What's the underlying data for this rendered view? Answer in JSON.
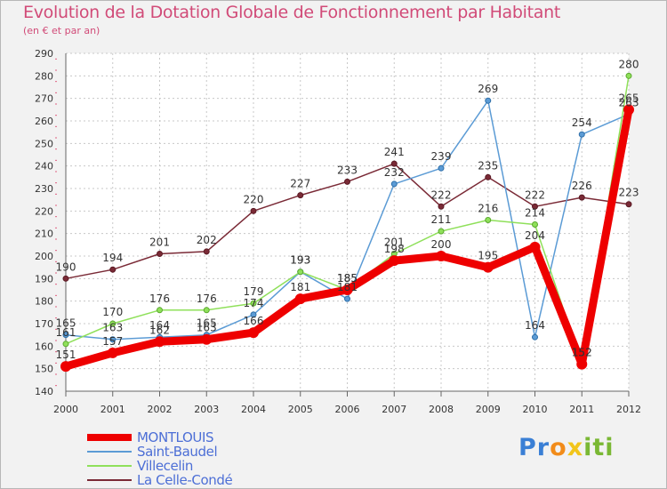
{
  "chart_data": {
    "type": "line",
    "title": "Evolution de la Dotation Globale de Fonctionnement par Habitant",
    "subtitle": "(en € et par an)",
    "xlabel": "",
    "ylabel": "",
    "ylim": [
      140,
      290
    ],
    "yticks": [
      140,
      150,
      160,
      170,
      180,
      190,
      200,
      210,
      220,
      230,
      240,
      250,
      260,
      270,
      280,
      290
    ],
    "x": [
      "2000",
      "2001",
      "2002",
      "2003",
      "2004",
      "2005",
      "2006",
      "2007",
      "2008",
      "2009",
      "2010",
      "2011",
      "2012"
    ],
    "grid": true,
    "legend_position": "bottom-left",
    "series": [
      {
        "name": "La Celle-Condé",
        "color": "#7a2a36",
        "values": [
          190,
          194,
          201,
          202,
          220,
          227,
          233,
          241,
          222,
          235,
          222,
          226,
          223
        ]
      },
      {
        "name": "Saint-Baudel",
        "color": "#5b9bd5",
        "values": [
          165,
          163,
          164,
          165,
          174,
          193,
          181,
          232,
          239,
          269,
          164,
          254,
          263
        ]
      },
      {
        "name": "Villecelin",
        "color": "#8fe05a",
        "values": [
          161,
          170,
          176,
          176,
          179,
          193,
          185,
          201,
          211,
          216,
          214,
          152,
          280
        ]
      },
      {
        "name": "MONTLOUIS",
        "color": "#ee0000",
        "values": [
          151,
          157,
          162,
          163,
          166,
          181,
          185,
          198,
          200,
          195,
          204,
          152,
          265
        ]
      }
    ],
    "legend": [
      "MONTLOUIS",
      "Saint-Baudel",
      "Villecelin",
      "La Celle-Condé"
    ],
    "brand": {
      "letters": [
        "P",
        "r",
        "o",
        "x",
        "i",
        "t",
        "i"
      ],
      "colors": [
        "#3a7fd5",
        "#3a7fd5",
        "#f28c1a",
        "#f2c51a",
        "#7ab834",
        "#7ab834",
        "#7ab834"
      ]
    }
  }
}
